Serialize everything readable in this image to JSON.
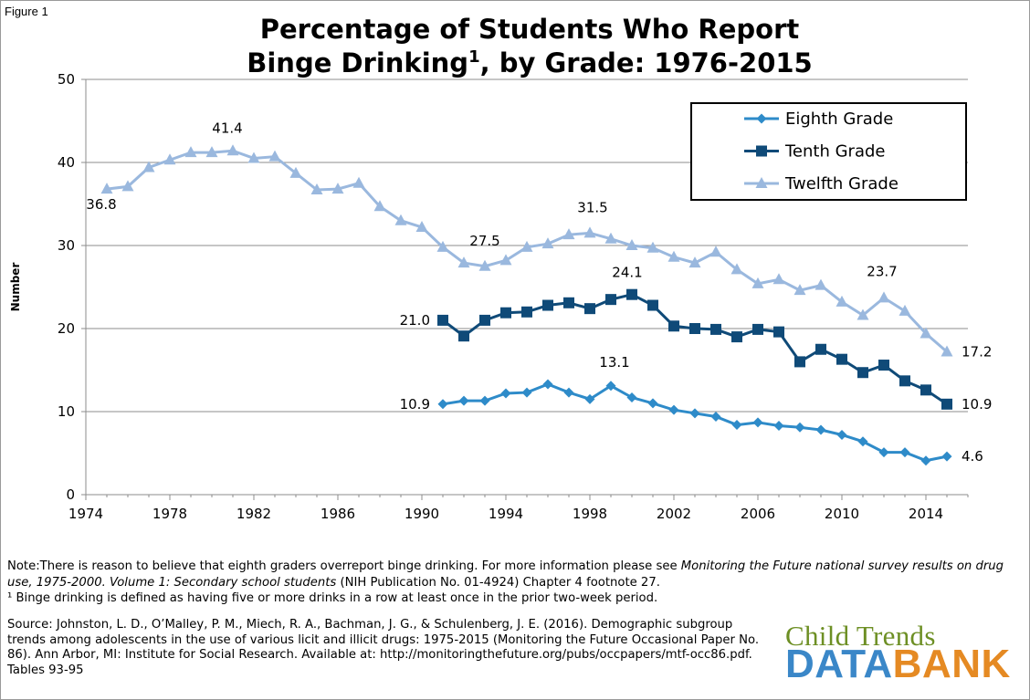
{
  "figure_label": "Figure 1",
  "title_main": "Percentage of Students Who Report",
  "title_line2": "Binge Drinking",
  "title_sup": "1",
  "title_tail": ", by Grade: 1976-2015",
  "note_line1_start": "Note:There is reason to believe that eighth graders overreport binge drinking.  For more information please see ",
  "note_line1_italic": "Monitoring the Future national survey results on drug use, 1975-2000. Volume 1: Secondary school students",
  "note_line1_end": " (NIH Publication No. 01-4924) Chapter 4 footnote 27.",
  "note_line2": "¹ Binge drinking is defined as having five or more drinks in a row at least once in the prior two-week period.",
  "source_text": "Source: Johnston, L. D., O’Malley, P. M., Miech, R. A., Bachman, J. G., & Schulenberg, J. E. (2016). Demographic subgroup trends among adolescents in the use of various licit and illicit drugs: 1975-2015 (Monitoring the Future Occasional Paper No. 86). Ann Arbor, MI: Institute for Social Research. Available at: http://monitoringthefuture.org/pubs/occpapers/mtf-occ86.pdf. Tables 93-95",
  "logo": {
    "top": "Child Trends",
    "data": "DATA",
    "bank": "BANK"
  },
  "chart_data": {
    "type": "line",
    "title": "Percentage of Students Who Report Binge Drinking, by Grade: 1976-2015",
    "xlabel": "",
    "ylabel": "Number",
    "xlim": [
      1974,
      2016
    ],
    "ylim": [
      0,
      50
    ],
    "x_ticks": [
      1974,
      1978,
      1982,
      1986,
      1990,
      1994,
      1998,
      2002,
      2006,
      2010,
      2014
    ],
    "y_ticks": [
      0,
      10,
      20,
      30,
      40,
      50
    ],
    "grid": true,
    "legend_position": "top-right",
    "series": [
      {
        "name": "Eighth Grade",
        "color": "#2e8bc9",
        "marker": "diamond",
        "x": [
          1991,
          1992,
          1993,
          1994,
          1995,
          1996,
          1997,
          1998,
          1999,
          2000,
          2001,
          2002,
          2003,
          2004,
          2005,
          2006,
          2007,
          2008,
          2009,
          2010,
          2011,
          2012,
          2013,
          2014,
          2015
        ],
        "values": [
          10.9,
          11.3,
          11.3,
          12.2,
          12.3,
          13.3,
          12.3,
          11.5,
          13.1,
          11.7,
          11.0,
          10.2,
          9.8,
          9.4,
          8.4,
          8.7,
          8.3,
          8.1,
          7.8,
          7.2,
          6.4,
          5.1,
          5.1,
          4.1,
          4.6
        ]
      },
      {
        "name": "Tenth Grade",
        "color": "#0f4a78",
        "marker": "square",
        "x": [
          1991,
          1992,
          1993,
          1994,
          1995,
          1996,
          1997,
          1998,
          1999,
          2000,
          2001,
          2002,
          2003,
          2004,
          2005,
          2006,
          2007,
          2008,
          2009,
          2010,
          2011,
          2012,
          2013,
          2014,
          2015
        ],
        "values": [
          21.0,
          19.1,
          21.0,
          21.9,
          22.0,
          22.8,
          23.1,
          22.4,
          23.5,
          24.1,
          22.8,
          20.3,
          20.0,
          19.9,
          19.0,
          19.9,
          19.6,
          16.0,
          17.5,
          16.3,
          14.7,
          15.6,
          13.7,
          12.6,
          10.9
        ]
      },
      {
        "name": "Twelfth Grade",
        "color": "#9ab8de",
        "marker": "triangle",
        "x": [
          1975,
          1976,
          1977,
          1978,
          1979,
          1980,
          1981,
          1982,
          1983,
          1984,
          1985,
          1986,
          1987,
          1988,
          1989,
          1990,
          1991,
          1992,
          1993,
          1994,
          1995,
          1996,
          1997,
          1998,
          1999,
          2000,
          2001,
          2002,
          2003,
          2004,
          2005,
          2006,
          2007,
          2008,
          2009,
          2010,
          2011,
          2012,
          2013,
          2014,
          2015
        ],
        "values": [
          36.8,
          37.1,
          39.4,
          40.3,
          41.2,
          41.2,
          41.4,
          40.5,
          40.7,
          38.7,
          36.7,
          36.8,
          37.5,
          34.7,
          33.0,
          32.2,
          29.8,
          27.9,
          27.5,
          28.2,
          29.8,
          30.2,
          31.3,
          31.5,
          30.8,
          30.0,
          29.7,
          28.6,
          27.9,
          29.2,
          27.1,
          25.4,
          25.9,
          24.6,
          25.2,
          23.2,
          21.6,
          23.7,
          22.1,
          19.4,
          17.2
        ]
      }
    ],
    "data_labels": [
      {
        "series": "Twelfth Grade",
        "x": 1975,
        "text": "36.8"
      },
      {
        "series": "Twelfth Grade",
        "x": 1981,
        "text": "41.4"
      },
      {
        "series": "Twelfth Grade",
        "x": 1993,
        "text": "27.5"
      },
      {
        "series": "Twelfth Grade",
        "x": 1998,
        "text": "31.5"
      },
      {
        "series": "Twelfth Grade",
        "x": 2012,
        "text": "23.7"
      },
      {
        "series": "Twelfth Grade",
        "x": 2015,
        "text": "17.2"
      },
      {
        "series": "Tenth Grade",
        "x": 1991,
        "text": "21.0"
      },
      {
        "series": "Tenth Grade",
        "x": 2000,
        "text": "24.1"
      },
      {
        "series": "Tenth Grade",
        "x": 2015,
        "text": "10.9"
      },
      {
        "series": "Eighth Grade",
        "x": 1991,
        "text": "10.9"
      },
      {
        "series": "Eighth Grade",
        "x": 1999,
        "text": "13.1"
      },
      {
        "series": "Eighth Grade",
        "x": 2015,
        "text": "4.6"
      }
    ]
  }
}
